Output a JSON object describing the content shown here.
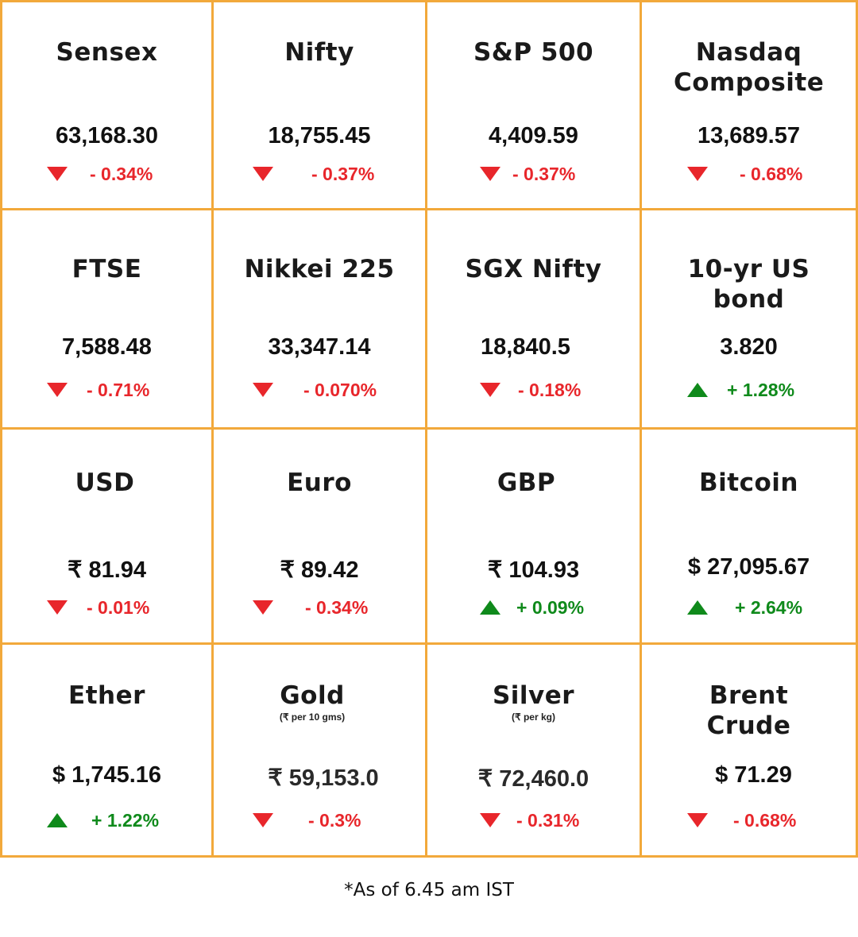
{
  "colors": {
    "border": "#f2a93b",
    "negative": "#e8262b",
    "positive": "#0f8a1b"
  },
  "markets": [
    {
      "name": "Sensex",
      "value": "63,168.30",
      "change": "- 0.34%",
      "direction": "down"
    },
    {
      "name": "Nifty",
      "value": "18,755.45",
      "change": "- 0.37%",
      "direction": "down"
    },
    {
      "name": "S&P 500",
      "value": "4,409.59",
      "change": "- 0.37%",
      "direction": "down"
    },
    {
      "name": "Nasdaq Composite",
      "value": "13,689.57",
      "change": "- 0.68%",
      "direction": "down"
    },
    {
      "name": "FTSE",
      "value": "7,588.48",
      "change": "- 0.71%",
      "direction": "down"
    },
    {
      "name": "Nikkei 225",
      "value": "33,347.14",
      "change": "- 0.070%",
      "direction": "down"
    },
    {
      "name": "SGX Nifty",
      "value": "18,840.5",
      "change": "- 0.18%",
      "direction": "down"
    },
    {
      "name": "10-yr US bond",
      "value": "3.820",
      "change": "+ 1.28%",
      "direction": "up"
    },
    {
      "name": "USD",
      "value": "₹ 81.94",
      "change": "- 0.01%",
      "direction": "down"
    },
    {
      "name": "Euro",
      "value": "₹ 89.42",
      "change": "- 0.34%",
      "direction": "down"
    },
    {
      "name": "GBP",
      "value": "₹ 104.93",
      "change": "+ 0.09%",
      "direction": "up"
    },
    {
      "name": "Bitcoin",
      "value": "$ 27,095.67",
      "change": "+ 2.64%",
      "direction": "up"
    },
    {
      "name": "Ether",
      "value": "$ 1,745.16",
      "change": "+ 1.22%",
      "direction": "up"
    },
    {
      "name": "Gold",
      "sub": "(₹ per 10 gms)",
      "value": "₹ 59,153.0",
      "change": "- 0.3%",
      "direction": "down"
    },
    {
      "name": "Silver",
      "sub": "(₹ per kg)",
      "value": "₹ 72,460.0",
      "change": "- 0.31%",
      "direction": "down"
    },
    {
      "name": "Brent Crude",
      "value": "$ 71.29",
      "change": "- 0.68%",
      "direction": "down"
    }
  ],
  "footnote": "*As of 6.45 am IST"
}
